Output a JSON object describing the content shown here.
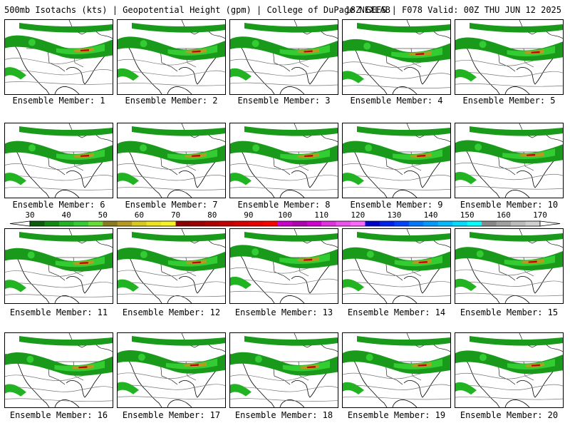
{
  "header": {
    "title": "500mb Isotachs (kts) | Geopotential Height (gpm) | College of DuPage NEXLAB",
    "run_info": "18Z GEFS | F078 Valid: 00Z THU JUN 12 2025"
  },
  "members": [
    {
      "label": "Ensemble Member: 1"
    },
    {
      "label": "Ensemble Member: 2"
    },
    {
      "label": "Ensemble Member: 3"
    },
    {
      "label": "Ensemble Member: 4"
    },
    {
      "label": "Ensemble Member: 5"
    },
    {
      "label": "Ensemble Member: 6"
    },
    {
      "label": "Ensemble Member: 7"
    },
    {
      "label": "Ensemble Member: 8"
    },
    {
      "label": "Ensemble Member: 9"
    },
    {
      "label": "Ensemble Member: 10"
    },
    {
      "label": "Ensemble Member: 11"
    },
    {
      "label": "Ensemble Member: 12"
    },
    {
      "label": "Ensemble Member: 13"
    },
    {
      "label": "Ensemble Member: 14"
    },
    {
      "label": "Ensemble Member: 15"
    },
    {
      "label": "Ensemble Member: 16"
    },
    {
      "label": "Ensemble Member: 17"
    },
    {
      "label": "Ensemble Member: 18"
    },
    {
      "label": "Ensemble Member: 19"
    },
    {
      "label": "Ensemble Member: 20"
    }
  ],
  "colorbar": {
    "labels": [
      "30",
      "40",
      "50",
      "60",
      "70",
      "80",
      "90",
      "100",
      "110",
      "120",
      "130",
      "140",
      "150",
      "160",
      "170"
    ],
    "colors": [
      "#0b5c0b",
      "#118a11",
      "#22b322",
      "#33cc33",
      "#66dd33",
      "#8c7a1e",
      "#b89a1e",
      "#d8c81e",
      "#ece21e",
      "#f7f31e",
      "#8b0000",
      "#9e0000",
      "#b00000",
      "#c40000",
      "#d80000",
      "#ea0000",
      "#ff0000",
      "#cc00cc",
      "#b000b0",
      "#d000d0",
      "#e030e0",
      "#f050f0",
      "#ff66ff",
      "#0000cc",
      "#0022ee",
      "#0044ff",
      "#0077ff",
      "#0099ff",
      "#00bbff",
      "#00ddff",
      "#00ffff",
      "#888888",
      "#a0a0a0",
      "#bbbbbb",
      "#d0d0d0"
    ]
  }
}
